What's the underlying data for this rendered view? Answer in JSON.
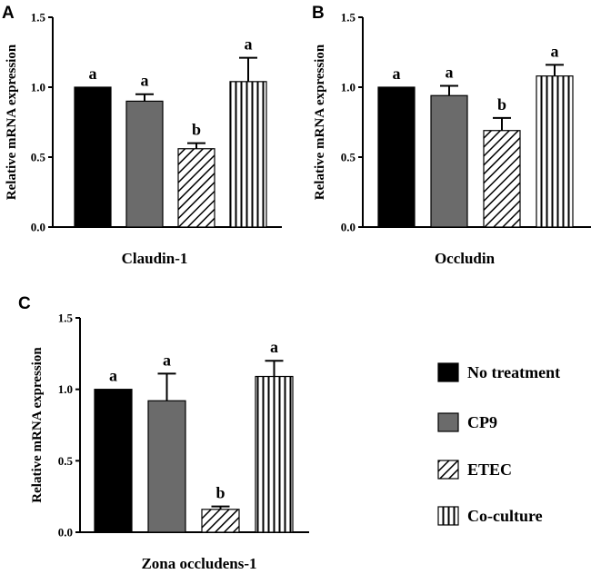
{
  "legend": [
    {
      "label": "No treatment",
      "fill": "#000000",
      "pattern": "solid"
    },
    {
      "label": "CP9",
      "fill": "#6b6b6b",
      "pattern": "solid"
    },
    {
      "label": "ETEC",
      "fill": "#ffffff",
      "pattern": "diagonal"
    },
    {
      "label": "Co-culture",
      "fill": "#ffffff",
      "pattern": "vertical"
    }
  ],
  "chart_data": [
    {
      "type": "bar",
      "panel": "A",
      "title": "",
      "xlabel": "Claudin-1",
      "ylabel": "Relative mRNA expression",
      "ylim": [
        0,
        1.5
      ],
      "yticks": [
        "0.0",
        "0.5",
        "1.0",
        "1.5"
      ],
      "categories": [
        "No treatment",
        "CP9",
        "ETEC",
        "Co-culture"
      ],
      "values": [
        1.0,
        0.9,
        0.56,
        1.04
      ],
      "errors": [
        0.0,
        0.05,
        0.04,
        0.17
      ],
      "significance": [
        "a",
        "a",
        "b",
        "a"
      ]
    },
    {
      "type": "bar",
      "panel": "B",
      "title": "",
      "xlabel": "Occludin",
      "ylabel": "Relative mRNA expression",
      "ylim": [
        0,
        1.5
      ],
      "yticks": [
        "0.0",
        "0.5",
        "1.0",
        "1.5"
      ],
      "categories": [
        "No treatment",
        "CP9",
        "ETEC",
        "Co-culture"
      ],
      "values": [
        1.0,
        0.94,
        0.69,
        1.08
      ],
      "errors": [
        0.0,
        0.07,
        0.09,
        0.08
      ],
      "significance": [
        "a",
        "a",
        "b",
        "a"
      ]
    },
    {
      "type": "bar",
      "panel": "C",
      "title": "",
      "xlabel": "Zona occludens-1",
      "ylabel": "Relative mRNA expression",
      "ylim": [
        0,
        1.5
      ],
      "yticks": [
        "0.0",
        "0.5",
        "1.0",
        "1.5"
      ],
      "categories": [
        "No treatment",
        "CP9",
        "ETEC",
        "Co-culture"
      ],
      "values": [
        1.0,
        0.92,
        0.16,
        1.09
      ],
      "errors": [
        0.0,
        0.19,
        0.02,
        0.11
      ],
      "significance": [
        "a",
        "a",
        "b",
        "a"
      ]
    }
  ]
}
